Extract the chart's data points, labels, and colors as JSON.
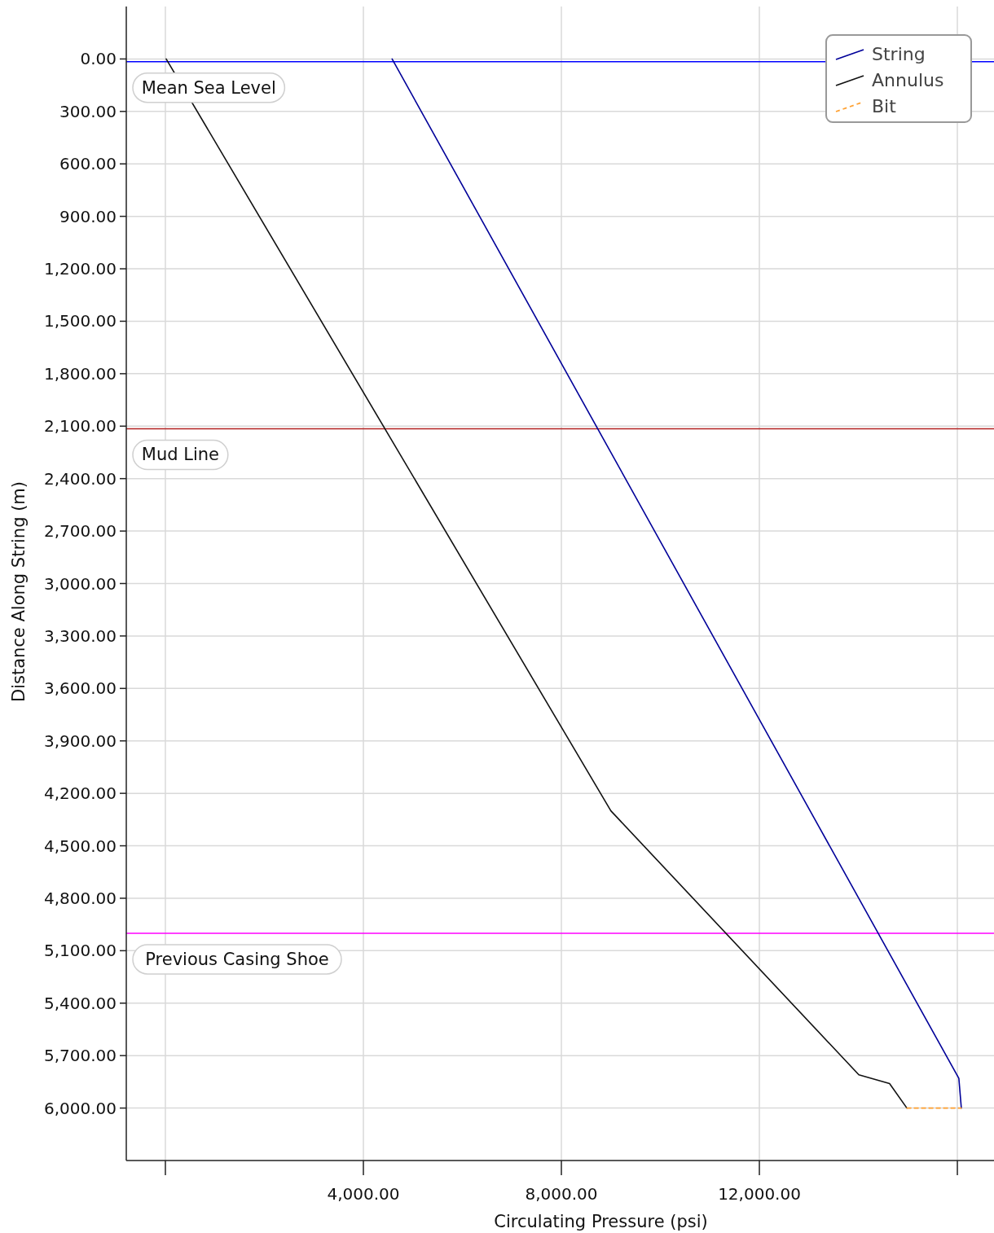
{
  "chart_data": {
    "type": "line",
    "xlabel": "Circulating Pressure (psi)",
    "ylabel": "Distance Along String (m)",
    "xlim": [
      -790,
      16740
    ],
    "ylim": [
      6300,
      -300
    ],
    "xticks": [
      {
        "value": 0,
        "label": null
      },
      {
        "value": 4000,
        "label": "4,000.00"
      },
      {
        "value": 8000,
        "label": "8,000.00"
      },
      {
        "value": 12000,
        "label": "12,000.00"
      },
      {
        "value": 16000,
        "label": null
      }
    ],
    "yticks": [
      {
        "value": 0,
        "label": "0.00"
      },
      {
        "value": 300,
        "label": "300.00"
      },
      {
        "value": 600,
        "label": "600.00"
      },
      {
        "value": 900,
        "label": "900.00"
      },
      {
        "value": 1200,
        "label": "1,200.00"
      },
      {
        "value": 1500,
        "label": "1,500.00"
      },
      {
        "value": 1800,
        "label": "1,800.00"
      },
      {
        "value": 2100,
        "label": "2,100.00"
      },
      {
        "value": 2400,
        "label": "2,400.00"
      },
      {
        "value": 2700,
        "label": "2,700.00"
      },
      {
        "value": 3000,
        "label": "3,000.00"
      },
      {
        "value": 3300,
        "label": "3,300.00"
      },
      {
        "value": 3600,
        "label": "3,600.00"
      },
      {
        "value": 3900,
        "label": "3,900.00"
      },
      {
        "value": 4200,
        "label": "4,200.00"
      },
      {
        "value": 4500,
        "label": "4,500.00"
      },
      {
        "value": 4800,
        "label": "4,800.00"
      },
      {
        "value": 5100,
        "label": "5,100.00"
      },
      {
        "value": 5400,
        "label": "5,400.00"
      },
      {
        "value": 5700,
        "label": "5,700.00"
      },
      {
        "value": 6000,
        "label": "6,000.00"
      }
    ],
    "grid": true,
    "legend": "top right",
    "series": [
      {
        "name": "String",
        "color": "#000099",
        "x": [
          4580,
          16030,
          16080
        ],
        "values": [
          0,
          5830,
          6000
        ]
      },
      {
        "name": "Annulus",
        "color": "#111111",
        "x": [
          16,
          9000,
          14010,
          14630,
          14980
        ],
        "values": [
          0,
          4300,
          5810,
          5860,
          6000
        ]
      },
      {
        "name": "Bit",
        "color": "#ffa030",
        "line_style": "dashed",
        "x": [
          14980,
          16080
        ],
        "values": [
          6000,
          6000
        ]
      }
    ],
    "ref_lines": [
      {
        "axis": "y",
        "value": 15,
        "label": "Mean Sea Level",
        "color": "#0000ff"
      },
      {
        "axis": "y",
        "value": 2115,
        "label": "Mud Line",
        "color": "#b22222"
      },
      {
        "axis": "y",
        "value": 5000,
        "label": "Previous Casing Shoe",
        "color": "#ff00ff"
      }
    ]
  }
}
